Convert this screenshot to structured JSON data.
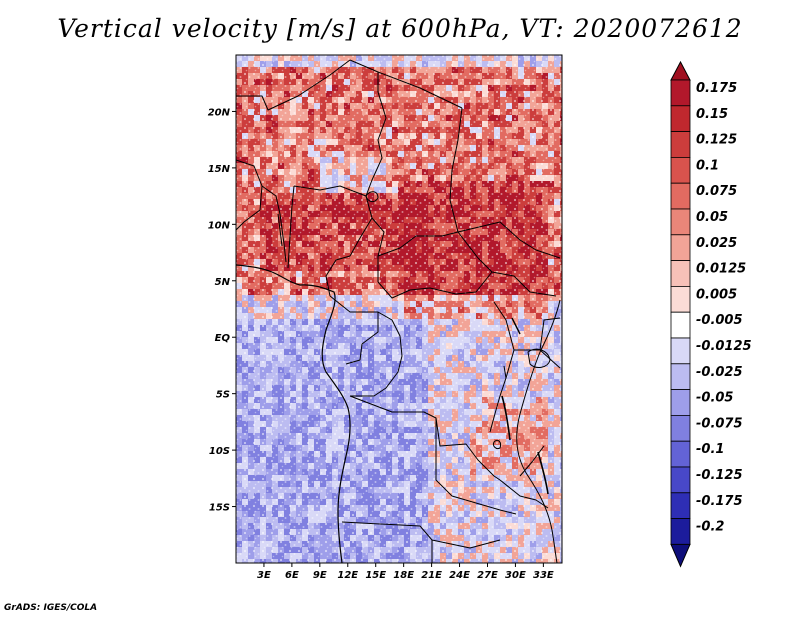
{
  "title": "Vertical velocity [m/s] at 600hPa, VT: 2020072612",
  "credit": "GrADS: IGES/COLA",
  "map": {
    "lon_range": [
      0,
      35
    ],
    "lat_range": [
      -20,
      25
    ],
    "lon_ticks": [
      {
        "value": 3,
        "label": "3E"
      },
      {
        "value": 6,
        "label": "6E"
      },
      {
        "value": 9,
        "label": "9E"
      },
      {
        "value": 12,
        "label": "12E"
      },
      {
        "value": 15,
        "label": "15E"
      },
      {
        "value": 18,
        "label": "18E"
      },
      {
        "value": 21,
        "label": "21E"
      },
      {
        "value": 24,
        "label": "24E"
      },
      {
        "value": 27,
        "label": "27E"
      },
      {
        "value": 30,
        "label": "30E"
      },
      {
        "value": 33,
        "label": "33E"
      }
    ],
    "lat_ticks": [
      {
        "value": 20,
        "label": "20N"
      },
      {
        "value": 15,
        "label": "15N"
      },
      {
        "value": 10,
        "label": "10N"
      },
      {
        "value": 5,
        "label": "5N"
      },
      {
        "value": 0,
        "label": "EQ"
      },
      {
        "value": -5,
        "label": "5S"
      },
      {
        "value": -10,
        "label": "10S"
      },
      {
        "value": -15,
        "label": "15S"
      }
    ]
  },
  "colorbar": {
    "levels": [
      {
        "label": "0.175",
        "color": "#b2182b"
      },
      {
        "label": "0.15",
        "color": "#c0282e"
      },
      {
        "label": "0.125",
        "color": "#cc3d3c"
      },
      {
        "label": "0.1",
        "color": "#d9534d"
      },
      {
        "label": "0.075",
        "color": "#e26b61"
      },
      {
        "label": "0.05",
        "color": "#ea8679"
      },
      {
        "label": "0.025",
        "color": "#f2a497"
      },
      {
        "label": "0.0125",
        "color": "#f7c1b8"
      },
      {
        "label": "0.005",
        "color": "#fbdcd6"
      },
      {
        "label": "-0.005",
        "color": "#ffffff"
      },
      {
        "label": "-0.0125",
        "color": "#d9d9f7"
      },
      {
        "label": "-0.025",
        "color": "#bcbcf1"
      },
      {
        "label": "-0.05",
        "color": "#9e9eea"
      },
      {
        "label": "-0.075",
        "color": "#8080e0"
      },
      {
        "label": "-0.1",
        "color": "#6363d6"
      },
      {
        "label": "-0.125",
        "color": "#4848c8"
      },
      {
        "label": "-0.175",
        "color": "#2e2eb5"
      },
      {
        "label": "-0.2",
        "color": "#1c1c9c"
      }
    ],
    "top_arrow_color": "#a01020",
    "bottom_arrow_color": "#0e0e7a"
  }
}
